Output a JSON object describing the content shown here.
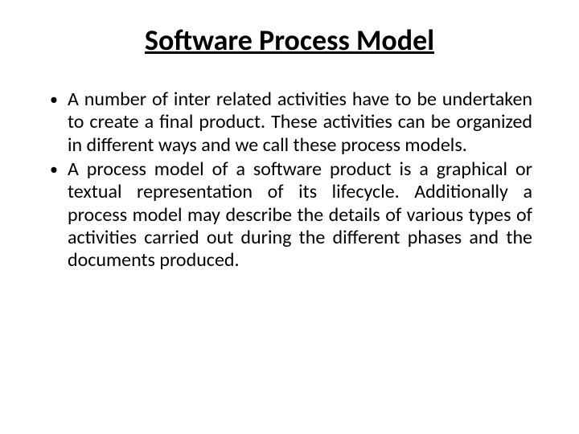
{
  "slide": {
    "title": "Software Process Model",
    "bullets": [
      "A number of inter related activities have to be undertaken to create a final product. These activities can be organized in different ways and we call these process models.",
      "A process model of a software product is a graphical or textual representation of its lifecycle. Additionally a process model may describe the details of various types of activities carried out during the different phases and the documents produced."
    ]
  },
  "style": {
    "background_color": "#ffffff",
    "text_color": "#000000",
    "title_fontsize": 36,
    "title_weight": 700,
    "title_underline": true,
    "body_fontsize": 24,
    "body_alignment": "justify",
    "bullet_marker": "•"
  }
}
